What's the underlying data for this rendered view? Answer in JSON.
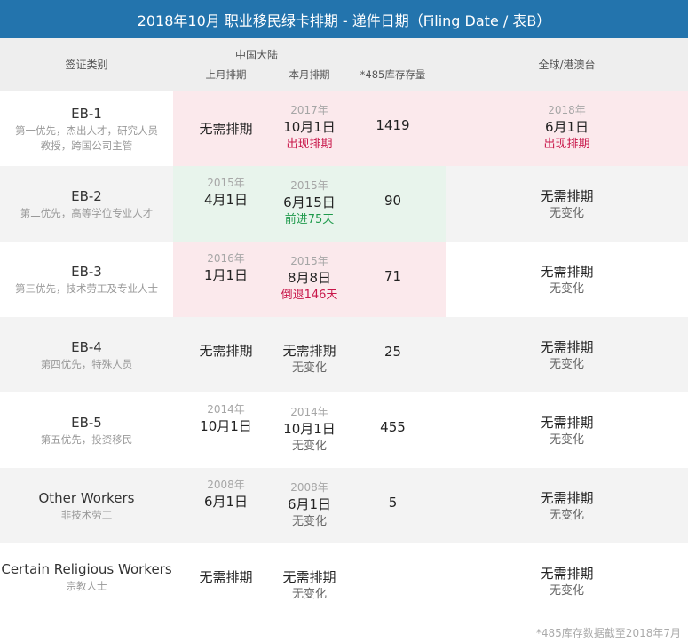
{
  "title": "2018年10月 职业移民绿卡排期 - 递件日期（Filing Date / 表B）",
  "header": {
    "category": "签证类别",
    "china_group": "中国大陆",
    "last_month": "上月排期",
    "this_month": "本月排期",
    "inventory": "*485库存存量",
    "world": "全球/港澳台"
  },
  "rows": [
    {
      "name": "EB-1",
      "desc1": "第一优先，杰出人才，研究人员",
      "desc2": "教授，跨国公司主管",
      "last_year": "",
      "last_date": "无需排期",
      "this_year": "2017年",
      "this_date": "10月1日",
      "this_change": "出现排期",
      "inventory": "1419",
      "world_year": "2018年",
      "world_date": "6月1日",
      "world_change": "出现排期"
    },
    {
      "name": "EB-2",
      "desc1": "第二优先，高等学位专业人才",
      "desc2": "",
      "last_year": "2015年",
      "last_date": "4月1日",
      "this_year": "2015年",
      "this_date": "6月15日",
      "this_change": "前进75天",
      "inventory": "90",
      "world_year": "",
      "world_date": "无需排期",
      "world_change": "无变化"
    },
    {
      "name": "EB-3",
      "desc1": "第三优先，技术劳工及专业人士",
      "desc2": "",
      "last_year": "2016年",
      "last_date": "1月1日",
      "this_year": "2015年",
      "this_date": "8月8日",
      "this_change": "倒退146天",
      "inventory": "71",
      "world_year": "",
      "world_date": "无需排期",
      "world_change": "无变化"
    },
    {
      "name": "EB-4",
      "desc1": "第四优先，特殊人员",
      "desc2": "",
      "last_year": "",
      "last_date": "无需排期",
      "this_year": "",
      "this_date": "无需排期",
      "this_change": "无变化",
      "inventory": "25",
      "world_year": "",
      "world_date": "无需排期",
      "world_change": "无变化"
    },
    {
      "name": "EB-5",
      "desc1": "第五优先，投资移民",
      "desc2": "",
      "last_year": "2014年",
      "last_date": "10月1日",
      "this_year": "2014年",
      "this_date": "10月1日",
      "this_change": "无变化",
      "inventory": "455",
      "world_year": "",
      "world_date": "无需排期",
      "world_change": "无变化"
    },
    {
      "name": "Other Workers",
      "desc1": "非技术劳工",
      "desc2": "",
      "last_year": "2008年",
      "last_date": "6月1日",
      "this_year": "2008年",
      "this_date": "6月1日",
      "this_change": "无变化",
      "inventory": "5",
      "world_year": "",
      "world_date": "无需排期",
      "world_change": "无变化"
    },
    {
      "name": "Certain Religious Workers",
      "desc1": "宗教人士",
      "desc2": "",
      "last_year": "",
      "last_date": "无需排期",
      "this_year": "",
      "this_date": "无需排期",
      "this_change": "无变化",
      "inventory": "",
      "world_year": "",
      "world_date": "无需排期",
      "world_change": "无变化"
    }
  ],
  "footnote": "*485库存数据截至2018年7月",
  "colors": {
    "title_bg": "#2374ad",
    "highlight_red": "#fbe9ec",
    "highlight_green": "#e8f4ec",
    "change_red": "#c8174a",
    "change_green": "#1f9a4c"
  }
}
